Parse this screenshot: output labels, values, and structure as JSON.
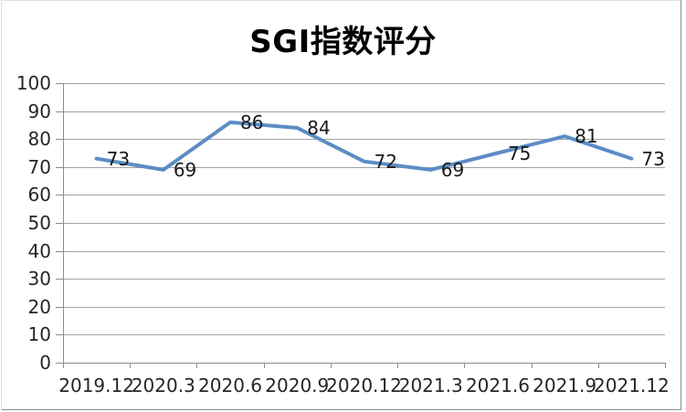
{
  "window": {
    "background": "#ffffff",
    "border_light": "#e2e2e2",
    "border_dark": "#8c8c8c"
  },
  "chart_data": {
    "type": "line",
    "title": "SGI指数评分",
    "categories": [
      "2019.12",
      "2020.3",
      "2020.6",
      "2020.9",
      "2020.12",
      "2021.3",
      "2021.6",
      "2021.9",
      "2021.12"
    ],
    "values": [
      73,
      69,
      86,
      84,
      72,
      69,
      75,
      81,
      73
    ],
    "data_labels": [
      "73",
      "69",
      "86",
      "84",
      "72",
      "69",
      "75",
      "81",
      "73"
    ],
    "data_label_position": "right",
    "xlabel": "",
    "ylabel": "",
    "ylim": [
      0,
      100
    ],
    "ytick_step": 10,
    "yticks": [
      "0",
      "10",
      "20",
      "30",
      "40",
      "50",
      "60",
      "70",
      "80",
      "90",
      "100"
    ],
    "grid": "horizontal",
    "legend": "none",
    "line_color": "#5b8dc4",
    "grid_color": "#a3a3a3",
    "axis_color": "#8c8c8c",
    "tick_color": "#262626",
    "label_color": "#1a1a1a",
    "title_color": "#000000"
  }
}
